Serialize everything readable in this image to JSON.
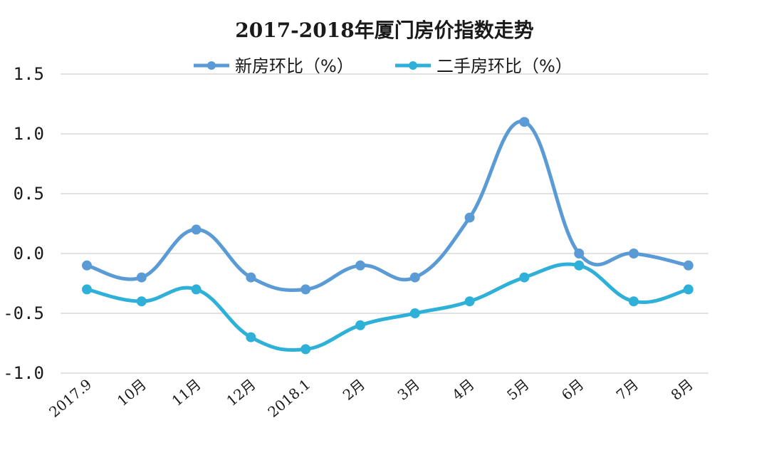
{
  "chart_data": {
    "type": "line",
    "title": "2017-2018年厦门房价指数走势",
    "categories": [
      "2017.9",
      "10月",
      "11月",
      "12月",
      "2018.1",
      "2月",
      "3月",
      "4月",
      "5月",
      "6月",
      "7月",
      "8月"
    ],
    "series": [
      {
        "name": "新房环比（%）",
        "color": "#5b9bd5",
        "values": [
          -0.1,
          -0.2,
          0.2,
          -0.2,
          -0.3,
          -0.1,
          -0.2,
          0.3,
          1.1,
          0.0,
          0.0,
          -0.1
        ]
      },
      {
        "name": "二手房环比（%）",
        "color": "#2fb0d8",
        "values": [
          -0.3,
          -0.4,
          -0.3,
          -0.7,
          -0.8,
          -0.6,
          -0.5,
          -0.4,
          -0.2,
          -0.1,
          -0.4,
          -0.3
        ]
      }
    ],
    "yticks": [
      "1.5",
      "1.0",
      "0.5",
      "0.0",
      "-0.5",
      "-1.0"
    ],
    "ylim": [
      -1.0,
      1.5
    ],
    "grid": true,
    "legend": "top"
  }
}
